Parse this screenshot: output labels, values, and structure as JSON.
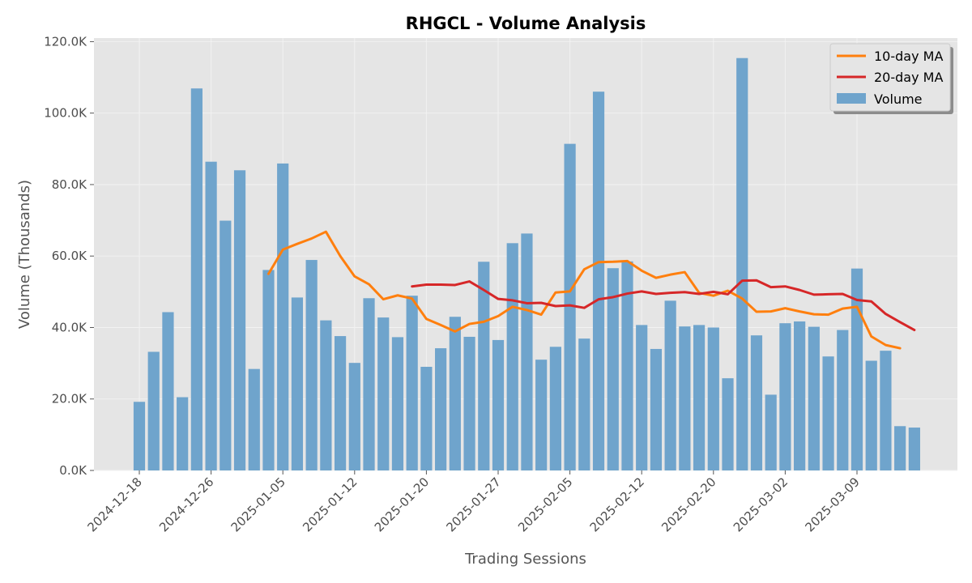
{
  "chart_data": {
    "type": "bar",
    "title": "RHGCL - Volume Analysis",
    "xlabel": "Trading Sessions",
    "ylabel": "Volume (Thousands)",
    "ylim": [
      0,
      121000
    ],
    "y_ticks": [
      0,
      20000,
      40000,
      60000,
      80000,
      100000,
      120000
    ],
    "y_tick_labels": [
      "0.0K",
      "20.0K",
      "40.0K",
      "60.0K",
      "80.0K",
      "100.0K",
      "120.0K"
    ],
    "x_tick_indices": [
      0,
      5,
      10,
      15,
      20,
      25,
      30,
      35,
      40,
      45,
      50
    ],
    "x_tick_labels": [
      "2024-12-18",
      "2024-12-26",
      "2025-01-05",
      "2025-01-12",
      "2025-01-20",
      "2025-01-27",
      "2025-02-05",
      "2025-02-12",
      "2025-02-20",
      "2025-03-02",
      "2025-03-09"
    ],
    "grid": true,
    "legend_position": "top-right",
    "colors": {
      "volume": "#6fa4cc",
      "ma10": "#ff7f0e",
      "ma20": "#d62728",
      "background": "#e5e5e5",
      "grid": "#f2f2f2"
    },
    "series": [
      {
        "name": "Volume",
        "kind": "bar",
        "values": [
          19200,
          33200,
          44300,
          20500,
          106900,
          86400,
          69900,
          84000,
          28400,
          56100,
          85900,
          48400,
          58900,
          42000,
          37600,
          30100,
          48200,
          42800,
          37300,
          48900,
          29000,
          34200,
          43000,
          37400,
          58400,
          36500,
          63600,
          66300,
          31000,
          34600,
          91400,
          36900,
          106000,
          56600,
          58500,
          40700,
          34000,
          47500,
          40300,
          40700,
          40000,
          25800,
          115400,
          37800,
          21200,
          41200,
          41700,
          40200,
          31900,
          39300,
          56500,
          30700,
          33500,
          12400,
          12000
        ]
      },
      {
        "name": "10-day MA",
        "kind": "line",
        "start_index": 9,
        "values": [
          55000,
          61800,
          63400,
          64900,
          66800,
          60000,
          54300,
          52100,
          47900,
          49000,
          48100,
          42400,
          40700,
          38900,
          41000,
          41600,
          43200,
          45800,
          44900,
          43600,
          49800,
          50100,
          56300,
          58300,
          58400,
          58600,
          55900,
          53900,
          54800,
          55500,
          49700,
          48900,
          50300,
          48100,
          44400,
          44500,
          45400,
          44500,
          43700,
          43600,
          45300,
          45800,
          37500,
          35100,
          34200
        ]
      },
      {
        "name": "20-day MA",
        "kind": "line",
        "start_index": 19,
        "values": [
          51500,
          52000,
          52000,
          51900,
          52900,
          50500,
          48000,
          47600,
          46800,
          46900,
          46000,
          46200,
          45500,
          47900,
          48500,
          49500,
          50100,
          49400,
          49700,
          49900,
          49400,
          50000,
          49300,
          53100,
          53200,
          51300,
          51500,
          50500,
          49200,
          49300,
          49400,
          47700,
          47300,
          43800,
          41500,
          39300
        ]
      }
    ]
  }
}
